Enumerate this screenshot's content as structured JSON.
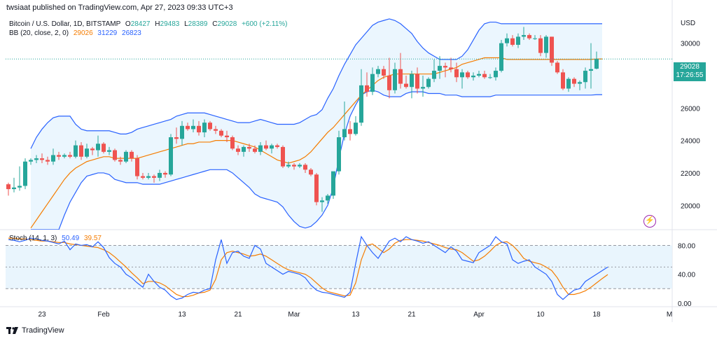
{
  "header": {
    "published": "twsiaat published on TradingView.com, Apr 27, 2023 09:33 UTC+3"
  },
  "legend": {
    "symbol": "Bitcoin / U.S. Dollar, 1D, BITSTAMP",
    "o_label": "O",
    "o": "28427",
    "h_label": "H",
    "h": "29483",
    "l_label": "L",
    "l": "28389",
    "c_label": "C",
    "c": "29028",
    "change": "+600 (+2.11%)",
    "bb_label": "BB (20, close, 2, 0)",
    "bb_mid": "29026",
    "bb_up": "31229",
    "bb_low": "26823",
    "stoch_label": "Stoch (14, 1, 3)",
    "stoch_k": "50.49",
    "stoch_d": "39.57"
  },
  "price_axis": {
    "currency": "USD",
    "ticks": [
      "30000",
      "28000",
      "26000",
      "24000",
      "22000",
      "20000"
    ]
  },
  "stoch_axis": {
    "ticks": [
      "80.00",
      "40.00",
      "0.00"
    ]
  },
  "time_axis": {
    "labels": [
      "23",
      "Feb",
      "13",
      "21",
      "Mar",
      "13",
      "21",
      "Apr",
      "10",
      "18",
      "M"
    ]
  },
  "last_price": {
    "price": "29028",
    "countdown": "17:26:55"
  },
  "footer": {
    "brand": "TradingView"
  },
  "colors": {
    "up": "#26a69a",
    "down": "#ef5350",
    "bb_band": "#2962ff",
    "bb_basis": "#f57c00",
    "stoch_k": "#2962ff",
    "stoch_d": "#f57c00",
    "band_fill": "#e3f2fd"
  },
  "chart_data": {
    "type": "candlestick",
    "symbol": "BTCUSD",
    "timeframe": "1D",
    "y_range": [
      18500,
      31800
    ],
    "stoch_range": [
      -5,
      95
    ],
    "candles": [
      {
        "o": 21300,
        "h": 21400,
        "l": 20600,
        "c": 21000
      },
      {
        "o": 21000,
        "h": 21700,
        "l": 20800,
        "c": 21100
      },
      {
        "o": 21100,
        "h": 22400,
        "l": 20900,
        "c": 21200
      },
      {
        "o": 21200,
        "h": 22900,
        "l": 21000,
        "c": 22700
      },
      {
        "o": 22700,
        "h": 22900,
        "l": 22500,
        "c": 22800
      },
      {
        "o": 22800,
        "h": 23100,
        "l": 22600,
        "c": 22900
      },
      {
        "o": 22900,
        "h": 23200,
        "l": 22600,
        "c": 22800
      },
      {
        "o": 22800,
        "h": 23000,
        "l": 22500,
        "c": 22700
      },
      {
        "o": 22700,
        "h": 23500,
        "l": 22500,
        "c": 23100
      },
      {
        "o": 23100,
        "h": 23300,
        "l": 22800,
        "c": 23000
      },
      {
        "o": 23000,
        "h": 23200,
        "l": 22900,
        "c": 23100
      },
      {
        "o": 23100,
        "h": 23300,
        "l": 22900,
        "c": 23000
      },
      {
        "o": 23000,
        "h": 24000,
        "l": 22900,
        "c": 23700
      },
      {
        "o": 23700,
        "h": 23900,
        "l": 22800,
        "c": 23000
      },
      {
        "o": 23000,
        "h": 23800,
        "l": 22900,
        "c": 23500
      },
      {
        "o": 23500,
        "h": 23600,
        "l": 23100,
        "c": 23400
      },
      {
        "o": 23400,
        "h": 24300,
        "l": 23000,
        "c": 23800
      },
      {
        "o": 23800,
        "h": 23900,
        "l": 23200,
        "c": 23300
      },
      {
        "o": 23300,
        "h": 23600,
        "l": 23100,
        "c": 23400
      },
      {
        "o": 23400,
        "h": 23500,
        "l": 22700,
        "c": 22800
      },
      {
        "o": 22800,
        "h": 23000,
        "l": 22500,
        "c": 22700
      },
      {
        "o": 22700,
        "h": 23400,
        "l": 22600,
        "c": 23300
      },
      {
        "o": 23300,
        "h": 23400,
        "l": 22700,
        "c": 22900
      },
      {
        "o": 22900,
        "h": 23100,
        "l": 21600,
        "c": 21800
      },
      {
        "o": 21800,
        "h": 22000,
        "l": 21600,
        "c": 21700
      },
      {
        "o": 21700,
        "h": 22000,
        "l": 21600,
        "c": 21800
      },
      {
        "o": 21800,
        "h": 21900,
        "l": 21400,
        "c": 21700
      },
      {
        "o": 21700,
        "h": 22200,
        "l": 21500,
        "c": 22000
      },
      {
        "o": 22000,
        "h": 22100,
        "l": 21700,
        "c": 21900
      },
      {
        "o": 21900,
        "h": 24400,
        "l": 21800,
        "c": 24200
      },
      {
        "o": 24200,
        "h": 24800,
        "l": 23800,
        "c": 24100
      },
      {
        "o": 24100,
        "h": 25200,
        "l": 23700,
        "c": 24900
      },
      {
        "o": 24900,
        "h": 25100,
        "l": 24600,
        "c": 24700
      },
      {
        "o": 24700,
        "h": 25300,
        "l": 24500,
        "c": 24900
      },
      {
        "o": 24900,
        "h": 25200,
        "l": 24300,
        "c": 24500
      },
      {
        "o": 24500,
        "h": 25300,
        "l": 24200,
        "c": 25100
      },
      {
        "o": 25100,
        "h": 25200,
        "l": 24600,
        "c": 24700
      },
      {
        "o": 24700,
        "h": 24900,
        "l": 24400,
        "c": 24600
      },
      {
        "o": 24600,
        "h": 24700,
        "l": 24200,
        "c": 24300
      },
      {
        "o": 24300,
        "h": 24600,
        "l": 23900,
        "c": 24200
      },
      {
        "o": 24200,
        "h": 24300,
        "l": 23400,
        "c": 23500
      },
      {
        "o": 23500,
        "h": 23700,
        "l": 23100,
        "c": 23300
      },
      {
        "o": 23300,
        "h": 23700,
        "l": 23000,
        "c": 23600
      },
      {
        "o": 23600,
        "h": 23800,
        "l": 23300,
        "c": 23500
      },
      {
        "o": 23500,
        "h": 23700,
        "l": 23200,
        "c": 23300
      },
      {
        "o": 23300,
        "h": 23900,
        "l": 23100,
        "c": 23700
      },
      {
        "o": 23700,
        "h": 24000,
        "l": 23400,
        "c": 23500
      },
      {
        "o": 23500,
        "h": 23800,
        "l": 23200,
        "c": 23700
      },
      {
        "o": 23700,
        "h": 23800,
        "l": 23500,
        "c": 23600
      },
      {
        "o": 23600,
        "h": 23700,
        "l": 22300,
        "c": 22400
      },
      {
        "o": 22400,
        "h": 22700,
        "l": 22300,
        "c": 22500
      },
      {
        "o": 22500,
        "h": 22600,
        "l": 22200,
        "c": 22400
      },
      {
        "o": 22400,
        "h": 22600,
        "l": 22300,
        "c": 22500
      },
      {
        "o": 22500,
        "h": 22600,
        "l": 22000,
        "c": 22200
      },
      {
        "o": 22200,
        "h": 22300,
        "l": 21800,
        "c": 21900
      },
      {
        "o": 21900,
        "h": 22000,
        "l": 20000,
        "c": 20200
      },
      {
        "o": 20200,
        "h": 20500,
        "l": 19600,
        "c": 20300
      },
      {
        "o": 20300,
        "h": 20700,
        "l": 20100,
        "c": 20600
      },
      {
        "o": 20600,
        "h": 22000,
        "l": 20400,
        "c": 22100
      },
      {
        "o": 22100,
        "h": 24600,
        "l": 21900,
        "c": 24200
      },
      {
        "o": 24200,
        "h": 26400,
        "l": 24000,
        "c": 24700
      },
      {
        "o": 24700,
        "h": 25200,
        "l": 24000,
        "c": 24400
      },
      {
        "o": 24400,
        "h": 25500,
        "l": 24300,
        "c": 25100
      },
      {
        "o": 25100,
        "h": 28400,
        "l": 24900,
        "c": 27400
      },
      {
        "o": 27400,
        "h": 28200,
        "l": 26700,
        "c": 27000
      },
      {
        "o": 27000,
        "h": 28500,
        "l": 26800,
        "c": 28100
      },
      {
        "o": 28100,
        "h": 28600,
        "l": 27900,
        "c": 28400
      },
      {
        "o": 28400,
        "h": 28600,
        "l": 27800,
        "c": 28000
      },
      {
        "o": 28000,
        "h": 29100,
        "l": 26600,
        "c": 27100
      },
      {
        "o": 27100,
        "h": 28800,
        "l": 26900,
        "c": 28400
      },
      {
        "o": 28400,
        "h": 29400,
        "l": 27200,
        "c": 27500
      },
      {
        "o": 27500,
        "h": 28000,
        "l": 27200,
        "c": 27300
      },
      {
        "o": 27300,
        "h": 28300,
        "l": 26600,
        "c": 28100
      },
      {
        "o": 28100,
        "h": 28500,
        "l": 26900,
        "c": 27200
      },
      {
        "o": 27200,
        "h": 28000,
        "l": 26700,
        "c": 27300
      },
      {
        "o": 27300,
        "h": 27900,
        "l": 27200,
        "c": 27800
      },
      {
        "o": 27800,
        "h": 29000,
        "l": 27600,
        "c": 28300
      },
      {
        "o": 28300,
        "h": 29200,
        "l": 27800,
        "c": 28600
      },
      {
        "o": 28600,
        "h": 28800,
        "l": 27900,
        "c": 28500
      },
      {
        "o": 28500,
        "h": 29100,
        "l": 28200,
        "c": 28400
      },
      {
        "o": 28400,
        "h": 28800,
        "l": 27600,
        "c": 27900
      },
      {
        "o": 27900,
        "h": 28400,
        "l": 27200,
        "c": 28200
      },
      {
        "o": 28200,
        "h": 28300,
        "l": 27800,
        "c": 27900
      },
      {
        "o": 27900,
        "h": 28200,
        "l": 27700,
        "c": 28000
      },
      {
        "o": 28000,
        "h": 28300,
        "l": 27900,
        "c": 28100
      },
      {
        "o": 28100,
        "h": 28300,
        "l": 27800,
        "c": 27900
      },
      {
        "o": 27900,
        "h": 28100,
        "l": 27800,
        "c": 27900
      },
      {
        "o": 27900,
        "h": 28500,
        "l": 27700,
        "c": 28300
      },
      {
        "o": 28300,
        "h": 30200,
        "l": 28200,
        "c": 30000
      },
      {
        "o": 30000,
        "h": 30600,
        "l": 29800,
        "c": 30300
      },
      {
        "o": 30300,
        "h": 30500,
        "l": 29800,
        "c": 29900
      },
      {
        "o": 29900,
        "h": 30600,
        "l": 29700,
        "c": 30400
      },
      {
        "o": 30400,
        "h": 31000,
        "l": 30200,
        "c": 30500
      },
      {
        "o": 30500,
        "h": 30600,
        "l": 30200,
        "c": 30300
      },
      {
        "o": 30300,
        "h": 30500,
        "l": 30200,
        "c": 30300
      },
      {
        "o": 30300,
        "h": 30500,
        "l": 29200,
        "c": 29400
      },
      {
        "o": 29400,
        "h": 30500,
        "l": 29100,
        "c": 30400
      },
      {
        "o": 30400,
        "h": 30400,
        "l": 28600,
        "c": 28800
      },
      {
        "o": 28800,
        "h": 28900,
        "l": 28100,
        "c": 28200
      },
      {
        "o": 28200,
        "h": 28400,
        "l": 27100,
        "c": 27200
      },
      {
        "o": 27200,
        "h": 27900,
        "l": 27000,
        "c": 27800
      },
      {
        "o": 27800,
        "h": 27900,
        "l": 27300,
        "c": 27500
      },
      {
        "o": 27500,
        "h": 27700,
        "l": 27100,
        "c": 27600
      },
      {
        "o": 27600,
        "h": 28500,
        "l": 27200,
        "c": 28300
      },
      {
        "o": 28300,
        "h": 30000,
        "l": 27200,
        "c": 28400
      },
      {
        "o": 28427,
        "h": 29483,
        "l": 28389,
        "c": 29028
      }
    ],
    "bollinger": {
      "start_index": 4,
      "upper": [
        23500,
        24200,
        24700,
        25100,
        25400,
        25500,
        25500,
        25500,
        25000,
        24700,
        24600,
        24600,
        24600,
        24600,
        24600,
        24500,
        24400,
        24400,
        24500,
        24700,
        24800,
        24900,
        25000,
        25100,
        25200,
        25300,
        25500,
        25600,
        25700,
        25700,
        25700,
        25700,
        25600,
        25500,
        25400,
        25300,
        25200,
        25100,
        25100,
        25100,
        25200,
        25300,
        25200,
        25100,
        25000,
        25000,
        25000,
        25000,
        25100,
        25300,
        25500,
        25600,
        25900,
        26600,
        27200,
        28000,
        28700,
        29300,
        29900,
        30300,
        30700,
        31100,
        31300,
        31400,
        31500,
        31400,
        31200,
        30900,
        30600,
        30100,
        29700,
        29400,
        29200,
        29000,
        29000,
        29000,
        29000,
        29200,
        29600,
        30200,
        30800,
        31200,
        31300,
        31300,
        31200,
        31200,
        31200,
        31200,
        31200,
        31200,
        31200,
        31200,
        31200,
        31200,
        31200,
        31200,
        31200,
        31200,
        31200,
        31200,
        31200,
        31200,
        31200
      ],
      "basis": [
        18600,
        19100,
        19600,
        20100,
        20600,
        21100,
        21600,
        22000,
        22300,
        22500,
        22700,
        22800,
        22900,
        23000,
        23000,
        22900,
        22900,
        22900,
        22900,
        22900,
        23000,
        23100,
        23200,
        23300,
        23400,
        23500,
        23600,
        23700,
        23800,
        23800,
        23900,
        23900,
        23900,
        24000,
        24000,
        24000,
        24000,
        23900,
        23800,
        23700,
        23600,
        23400,
        23200,
        23000,
        22800,
        22700,
        22600,
        22700,
        22800,
        23000,
        23300,
        23700,
        24100,
        24500,
        24800,
        25200,
        25600,
        26000,
        26400,
        26800,
        27100,
        27400,
        27700,
        27900,
        28000,
        28100,
        28100,
        28100,
        28100,
        28100,
        28100,
        28100,
        28100,
        28200,
        28300,
        28400,
        28500,
        28700,
        28800,
        28900,
        29000,
        29100,
        29100,
        29100,
        29100,
        29000,
        29000,
        29000,
        29000,
        29000,
        29000,
        29000,
        29000,
        29000,
        29000,
        29000,
        29000,
        29000,
        29000,
        29000,
        29000,
        29026,
        29026
      ],
      "lower": [
        15000,
        15800,
        16500,
        17100,
        17700,
        18500,
        19400,
        20200,
        20800,
        21400,
        21800,
        21900,
        22000,
        22000,
        21900,
        21600,
        21500,
        21400,
        21400,
        21400,
        21300,
        21300,
        21300,
        21300,
        21400,
        21500,
        21600,
        21700,
        21800,
        21900,
        22000,
        22100,
        22200,
        22200,
        22200,
        22200,
        22000,
        21700,
        21400,
        21100,
        20700,
        20500,
        20400,
        20300,
        20200,
        19900,
        19400,
        19000,
        18700,
        18600,
        18700,
        19000,
        19400,
        20000,
        21100,
        22900,
        24400,
        25500,
        26200,
        26800,
        27000,
        27100,
        27000,
        26800,
        26700,
        26700,
        26700,
        26900,
        27000,
        27000,
        27000,
        26900,
        26900,
        26900,
        26800,
        26800,
        26800,
        26700,
        26700,
        26700,
        26700,
        26700,
        26700,
        26800,
        26800,
        26800,
        26800,
        26800,
        26800,
        26800,
        26800,
        26800,
        26800,
        26800,
        26800,
        26800,
        26800,
        26800,
        26800,
        26800,
        26800,
        26823,
        26823
      ]
    },
    "stochastic": {
      "k": [
        88,
        87,
        85,
        87,
        90,
        89,
        87,
        86,
        84,
        82,
        86,
        74,
        82,
        80,
        81,
        78,
        85,
        77,
        63,
        55,
        50,
        40,
        35,
        28,
        22,
        40,
        30,
        22,
        18,
        10,
        5,
        7,
        12,
        15,
        14,
        18,
        20,
        60,
        88,
        55,
        70,
        72,
        65,
        62,
        80,
        75,
        55,
        50,
        45,
        40,
        44,
        42,
        40,
        35,
        25,
        18,
        15,
        14,
        12,
        10,
        8,
        15,
        55,
        92,
        80,
        70,
        62,
        74,
        86,
        90,
        85,
        92,
        88,
        86,
        83,
        85,
        80,
        75,
        70,
        78,
        72,
        60,
        58,
        56,
        70,
        75,
        80,
        92,
        85,
        82,
        60,
        55,
        58,
        60,
        50,
        45,
        40,
        30,
        12,
        5,
        12,
        18,
        20,
        30,
        35,
        40,
        45,
        50
      ],
      "d": [
        90,
        90,
        89,
        89,
        88,
        87,
        86,
        86,
        85,
        84,
        84,
        82,
        81,
        80,
        79,
        78,
        77,
        74,
        70,
        64,
        57,
        50,
        42,
        35,
        27,
        30,
        30,
        28,
        24,
        18,
        12,
        9,
        9,
        11,
        14,
        15,
        18,
        33,
        60,
        70,
        72,
        70,
        68,
        65,
        66,
        68,
        65,
        60,
        55,
        50,
        46,
        44,
        42,
        40,
        35,
        28,
        21,
        16,
        14,
        12,
        10,
        11,
        28,
        60,
        80,
        82,
        76,
        70,
        75,
        83,
        87,
        88,
        88,
        87,
        86,
        84,
        82,
        80,
        77,
        75,
        74,
        70,
        64,
        58,
        60,
        65,
        72,
        80,
        84,
        85,
        80,
        72,
        62,
        58,
        56,
        54,
        50,
        45,
        35,
        22,
        12,
        12,
        14,
        17,
        22,
        28,
        34,
        39.57
      ]
    }
  }
}
